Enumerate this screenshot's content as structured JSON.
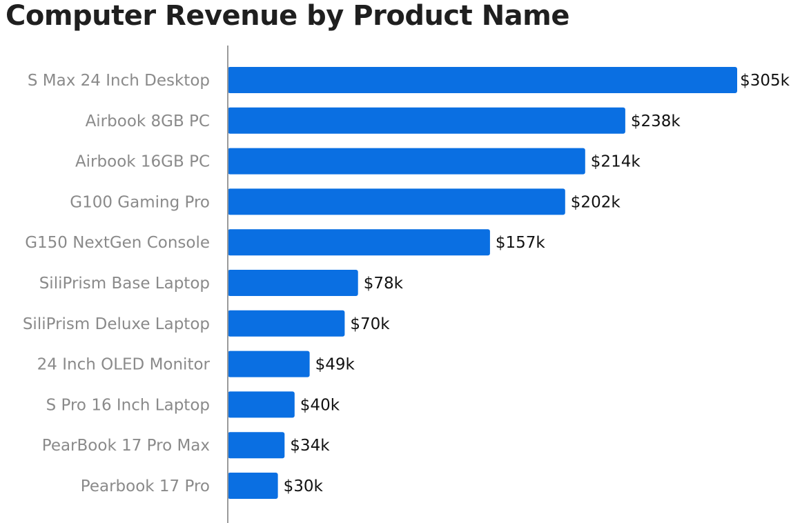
{
  "chart_data": {
    "type": "bar",
    "orientation": "horizontal",
    "title": "Computer Revenue by Product Name",
    "xlabel": "",
    "ylabel": "",
    "categories": [
      "S Max 24 Inch Desktop",
      "Airbook 8GB PC",
      "Airbook 16GB PC",
      "G100 Gaming Pro",
      "G150 NextGen Console",
      "SiliPrism Base Laptop",
      "SiliPrism Deluxe Laptop",
      "24 Inch OLED Monitor",
      "S Pro 16 Inch Laptop",
      "PearBook 17 Pro Max",
      "Pearbook 17 Pro"
    ],
    "values": [
      305,
      238,
      214,
      202,
      157,
      78,
      70,
      49,
      40,
      34,
      30
    ],
    "value_labels": [
      "$305k",
      "$238k",
      "$214k",
      "$202k",
      "$157k",
      "$78k",
      "$70k",
      "$49k",
      "$40k",
      "$34k",
      "$30k"
    ],
    "unit": "$k",
    "xlim": [
      0,
      305
    ],
    "grid": false,
    "legend": "none",
    "colors": {
      "bar": "#0a6fe2",
      "axis": "#9a9a9a",
      "category_text": "#8a8a8a",
      "value_text": "#111111",
      "title_text": "#1f1f1f"
    }
  }
}
